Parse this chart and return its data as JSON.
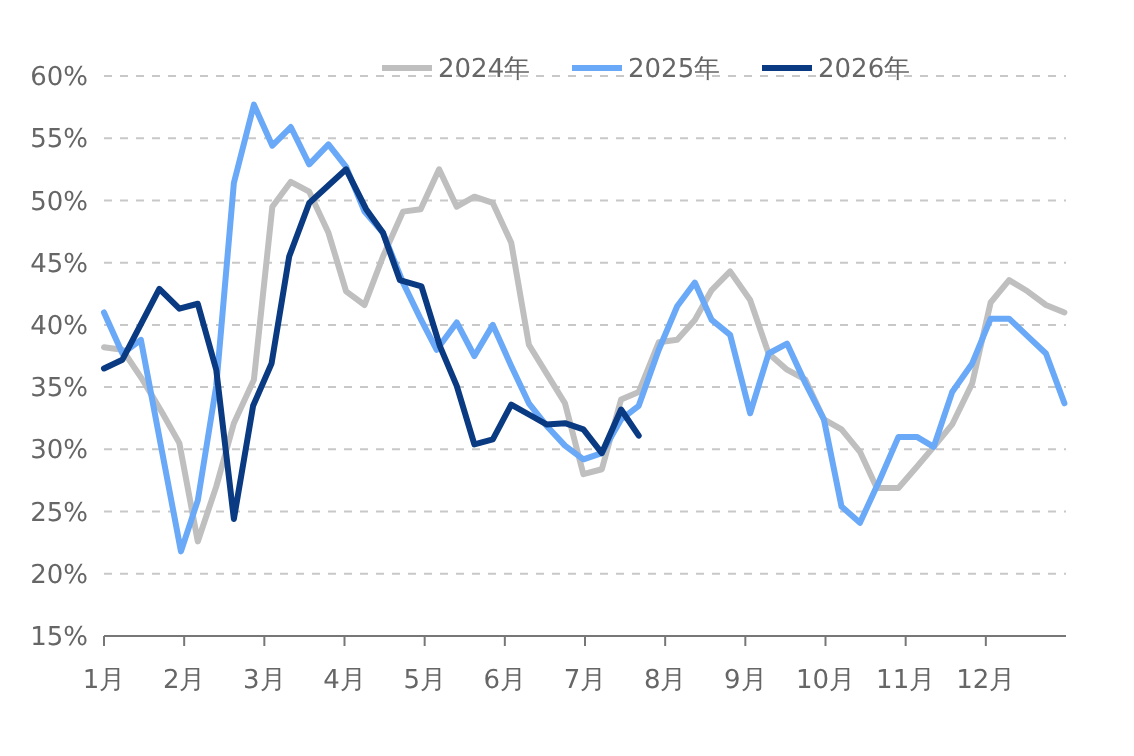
{
  "chart_data": {
    "type": "line",
    "xlim": [
      1,
      13
    ],
    "xticks": [
      {
        "value": 1,
        "label": "1月"
      },
      {
        "value": 2,
        "label": "2月"
      },
      {
        "value": 3,
        "label": "3月"
      },
      {
        "value": 4,
        "label": "4月"
      },
      {
        "value": 5,
        "label": "5月"
      },
      {
        "value": 6,
        "label": "6月"
      },
      {
        "value": 7,
        "label": "7月"
      },
      {
        "value": 8,
        "label": "8月"
      },
      {
        "value": 9,
        "label": "9月"
      },
      {
        "value": 10,
        "label": "10月"
      },
      {
        "value": 11,
        "label": "11月"
      },
      {
        "value": 12,
        "label": "12月"
      }
    ],
    "ylim": [
      15,
      60
    ],
    "yticks": [
      {
        "value": 15,
        "label": "15%"
      },
      {
        "value": 20,
        "label": "20%"
      },
      {
        "value": 25,
        "label": "25%"
      },
      {
        "value": 30,
        "label": "30%"
      },
      {
        "value": 35,
        "label": "35%"
      },
      {
        "value": 40,
        "label": "40%"
      },
      {
        "value": 45,
        "label": "45%"
      },
      {
        "value": 50,
        "label": "50%"
      },
      {
        "value": 55,
        "label": "55%"
      },
      {
        "value": 60,
        "label": "60%"
      }
    ],
    "grid": "y",
    "legend": "top",
    "marker": "none",
    "line_style": "solid",
    "series": [
      {
        "name": "2024年",
        "color": "#bfbfbf",
        "x": [
          1,
          1.23,
          1.48,
          1.73,
          1.94,
          2.17,
          2.4,
          2.62,
          2.87,
          3.1,
          3.33,
          3.56,
          3.8,
          4.02,
          4.25,
          4.48,
          4.73,
          4.95,
          5.18,
          5.4,
          5.62,
          5.85,
          6.08,
          6.3,
          6.52,
          6.75,
          6.98,
          7.21,
          7.45,
          7.67,
          7.92,
          8.15,
          8.37,
          8.58,
          8.81,
          9.06,
          9.29,
          9.52,
          9.75,
          9.98,
          10.2,
          10.43,
          10.64,
          10.91,
          11.14,
          11.35,
          11.58,
          11.83,
          12.06,
          12.29,
          12.52,
          12.75,
          12.98
        ],
        "values": [
          38.2,
          38,
          35.6,
          32.9,
          30.5,
          22.6,
          27,
          32.1,
          35.6,
          49.5,
          51.5,
          50.7,
          47.4,
          42.7,
          41.6,
          45.5,
          49.1,
          49.3,
          52.5,
          49.5,
          50.3,
          49.8,
          46.6,
          38.4,
          36.1,
          33.7,
          28,
          28.4,
          34,
          34.6,
          38.6,
          38.8,
          40.4,
          42.8,
          44.3,
          42,
          37.7,
          36.4,
          35.6,
          32.4,
          31.6,
          29.8,
          26.9,
          26.9,
          28.6,
          30.2,
          32,
          35.3,
          41.8,
          43.6,
          42.7,
          41.6,
          41
        ]
      },
      {
        "name": "2025年",
        "color": "#6aa9f7",
        "x": [
          1,
          1.23,
          1.46,
          1.96,
          2.17,
          2.4,
          2.62,
          2.87,
          3.1,
          3.33,
          3.56,
          3.8,
          4.02,
          4.25,
          4.48,
          4.73,
          4.94,
          5.15,
          5.4,
          5.62,
          5.85,
          6.08,
          6.3,
          6.52,
          6.75,
          6.98,
          7.21,
          7.45,
          7.67,
          7.92,
          8.15,
          8.37,
          8.58,
          8.81,
          9.06,
          9.29,
          9.52,
          9.75,
          9.98,
          10.2,
          10.43,
          10.68,
          10.91,
          11.14,
          11.35,
          11.58,
          11.83,
          12.06,
          12.29,
          12.52,
          12.75,
          12.98
        ],
        "values": [
          41,
          37.7,
          38.8,
          21.8,
          25.9,
          35.1,
          51.4,
          57.7,
          54.4,
          55.9,
          52.9,
          54.5,
          52.7,
          49.1,
          47.4,
          43.4,
          40.6,
          38,
          40.2,
          37.5,
          40,
          36.7,
          33.7,
          31.9,
          30.3,
          29.2,
          29.7,
          32.4,
          33.5,
          38,
          41.5,
          43.4,
          40.4,
          39.2,
          32.9,
          37.7,
          38.5,
          35.3,
          32.4,
          25.4,
          24.1,
          27.6,
          31,
          31,
          30.2,
          34.6,
          36.9,
          40.5,
          40.5,
          39.1,
          37.7,
          33.7
        ]
      },
      {
        "name": "2026年",
        "color": "#0a3a82",
        "x": [
          1,
          1.23,
          1.69,
          1.94,
          2.17,
          2.4,
          2.62,
          2.86,
          3.09,
          3.31,
          3.56,
          4.02,
          4.27,
          4.48,
          4.69,
          4.96,
          5.19,
          5.4,
          5.62,
          5.85,
          6.08,
          6.3,
          6.52,
          6.75,
          6.98,
          7.21,
          7.45,
          7.67
        ],
        "values": [
          36.5,
          37.2,
          42.9,
          41.3,
          41.7,
          36.4,
          24.4,
          33.5,
          36.9,
          45.5,
          49.8,
          52.5,
          49.3,
          47.4,
          43.6,
          43.1,
          38.3,
          35.1,
          30.4,
          30.8,
          33.6,
          32.8,
          32,
          32.1,
          31.6,
          29.7,
          33.2,
          31.1
        ]
      }
    ]
  }
}
